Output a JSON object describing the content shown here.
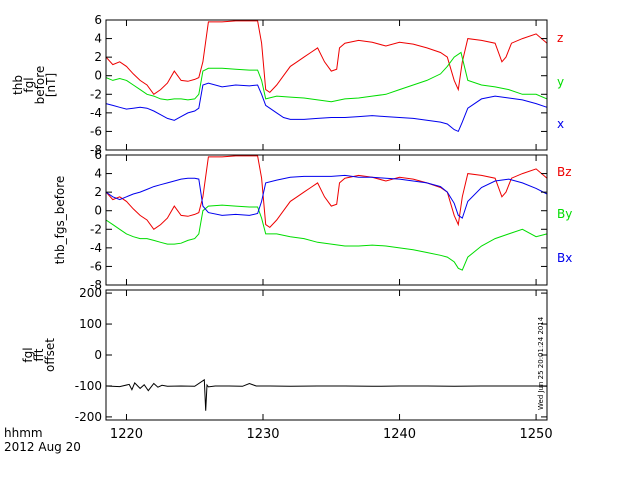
{
  "chart_data": [
    {
      "type": "line",
      "ylabel": [
        "thb",
        "fgl",
        "before",
        "[nT]"
      ],
      "ylim": [
        -8,
        6
      ],
      "yticks": [
        -8,
        -6,
        -4,
        -2,
        0,
        2,
        4,
        6
      ],
      "xlim": [
        1218.5,
        1250.8
      ],
      "series": [
        {
          "name": "z",
          "color": "#ee0000",
          "x": [
            1218.5,
            1219,
            1219.5,
            1220,
            1220.5,
            1221,
            1221.5,
            1222,
            1222.5,
            1223,
            1223.5,
            1224,
            1224.5,
            1225,
            1225.3,
            1225.6,
            1226,
            1227,
            1228,
            1229,
            1229.6,
            1229.9,
            1230.2,
            1230.5,
            1231,
            1231.5,
            1232,
            1232.5,
            1233,
            1233.5,
            1234,
            1234.5,
            1235,
            1235.4,
            1235.6,
            1236,
            1237,
            1238,
            1239,
            1240,
            1241,
            1242,
            1243,
            1243.5,
            1244,
            1244.3,
            1244.6,
            1245,
            1246,
            1247,
            1247.5,
            1247.8,
            1248.2,
            1249,
            1250,
            1250.8
          ],
          "y": [
            2,
            1.2,
            1.5,
            1,
            0.2,
            -0.5,
            -1,
            -2,
            -1.5,
            -0.8,
            0.5,
            -0.5,
            -0.6,
            -0.4,
            -0.2,
            1.5,
            5.8,
            5.8,
            5.9,
            5.9,
            5.9,
            3.5,
            -1.5,
            -1.8,
            -1,
            0,
            1,
            1.5,
            2,
            2.5,
            3,
            1.5,
            0.5,
            0.7,
            3,
            3.5,
            3.8,
            3.6,
            3.2,
            3.6,
            3.4,
            3,
            2.5,
            2,
            -0.5,
            -1.5,
            1.5,
            4,
            3.8,
            3.5,
            1.5,
            2,
            3.5,
            4,
            4.5,
            3.5
          ]
        },
        {
          "name": "y",
          "color": "#00dd00",
          "x": [
            1218.5,
            1219,
            1219.5,
            1220,
            1220.5,
            1221,
            1221.5,
            1222,
            1222.5,
            1223,
            1223.5,
            1224,
            1224.5,
            1225,
            1225.3,
            1225.6,
            1226,
            1227,
            1228,
            1229,
            1229.6,
            1229.9,
            1230.2,
            1231,
            1232,
            1233,
            1234,
            1235,
            1236,
            1237,
            1238,
            1239,
            1240,
            1241,
            1242,
            1243,
            1243.5,
            1244,
            1244.5,
            1245,
            1246,
            1247,
            1248,
            1249,
            1250,
            1250.8
          ],
          "y": [
            -0.2,
            -0.5,
            -0.3,
            -0.5,
            -1,
            -1.5,
            -2,
            -2.2,
            -2.5,
            -2.6,
            -2.5,
            -2.5,
            -2.6,
            -2.5,
            -2,
            0.5,
            0.8,
            0.8,
            0.7,
            0.6,
            0.6,
            -0.5,
            -2.5,
            -2.2,
            -2.3,
            -2.4,
            -2.6,
            -2.8,
            -2.5,
            -2.4,
            -2.2,
            -2,
            -1.5,
            -1,
            -0.5,
            0.2,
            1,
            2,
            2.5,
            -0.5,
            -1,
            -1.2,
            -1.5,
            -2,
            -2,
            -2.5
          ]
        },
        {
          "name": "x",
          "color": "#0000ee",
          "x": [
            1218.5,
            1219,
            1219.5,
            1220,
            1220.5,
            1221,
            1221.5,
            1222,
            1222.5,
            1223,
            1223.5,
            1224,
            1224.5,
            1225,
            1225.3,
            1225.6,
            1226,
            1227,
            1228,
            1229,
            1229.6,
            1229.9,
            1230.2,
            1230.5,
            1231,
            1231.5,
            1232,
            1233,
            1234,
            1235,
            1236,
            1237,
            1238,
            1239,
            1240,
            1241,
            1242,
            1243,
            1243.5,
            1244,
            1244.3,
            1244.6,
            1245,
            1246,
            1247,
            1248,
            1249,
            1250,
            1250.8
          ],
          "y": [
            -3,
            -3.2,
            -3.4,
            -3.6,
            -3.5,
            -3.4,
            -3.5,
            -3.8,
            -4.2,
            -4.6,
            -4.8,
            -4.4,
            -4,
            -3.8,
            -3.5,
            -1,
            -0.8,
            -1.2,
            -1,
            -1.1,
            -1,
            -2,
            -3.2,
            -3.5,
            -4,
            -4.5,
            -4.7,
            -4.7,
            -4.6,
            -4.5,
            -4.5,
            -4.4,
            -4.3,
            -4.4,
            -4.5,
            -4.6,
            -4.8,
            -5,
            -5.2,
            -5.8,
            -6,
            -5,
            -3.5,
            -2.5,
            -2.2,
            -2.4,
            -2.6,
            -3,
            -3.4
          ]
        }
      ],
      "legend": [
        {
          "label": "z",
          "color": "#ee0000"
        },
        {
          "label": "y",
          "color": "#00dd00"
        },
        {
          "label": "x",
          "color": "#0000ee"
        }
      ]
    },
    {
      "type": "line",
      "ylabel": [
        "thb_fgs_before"
      ],
      "ylim": [
        -8,
        6
      ],
      "yticks": [
        -8,
        -6,
        -4,
        -2,
        0,
        2,
        4,
        6
      ],
      "xlim": [
        1218.5,
        1250.8
      ],
      "series": [
        {
          "name": "Bz",
          "color": "#ee0000",
          "x": [
            1218.5,
            1219,
            1219.5,
            1220,
            1220.5,
            1221,
            1221.5,
            1222,
            1222.5,
            1223,
            1223.5,
            1224,
            1224.5,
            1225,
            1225.3,
            1225.6,
            1226,
            1227,
            1228,
            1229,
            1229.6,
            1229.9,
            1230.2,
            1230.5,
            1231,
            1231.5,
            1232,
            1232.5,
            1233,
            1233.5,
            1234,
            1234.5,
            1235,
            1235.4,
            1235.6,
            1236,
            1237,
            1238,
            1239,
            1240,
            1241,
            1242,
            1243,
            1243.5,
            1244,
            1244.3,
            1244.6,
            1245,
            1246,
            1247,
            1247.5,
            1247.8,
            1248.2,
            1249,
            1250,
            1250.8
          ],
          "y": [
            2,
            1.2,
            1.5,
            1,
            0.2,
            -0.5,
            -1,
            -2,
            -1.5,
            -0.8,
            0.5,
            -0.5,
            -0.6,
            -0.4,
            -0.2,
            1.5,
            5.8,
            5.8,
            5.9,
            5.9,
            5.9,
            3.5,
            -1.5,
            -1.8,
            -1,
            0,
            1,
            1.5,
            2,
            2.5,
            3,
            1.5,
            0.5,
            0.7,
            3,
            3.5,
            3.8,
            3.6,
            3.2,
            3.6,
            3.4,
            3,
            2.5,
            2,
            -0.5,
            -1.5,
            1.5,
            4,
            3.8,
            3.5,
            1.5,
            2,
            3.5,
            4,
            4.5,
            3.5
          ]
        },
        {
          "name": "By",
          "color": "#00dd00",
          "x": [
            1218.5,
            1219,
            1219.5,
            1220,
            1220.5,
            1221,
            1221.5,
            1222,
            1222.5,
            1223,
            1223.5,
            1224,
            1224.5,
            1225,
            1225.3,
            1225.6,
            1226,
            1227,
            1228,
            1229,
            1229.6,
            1229.9,
            1230.2,
            1231,
            1232,
            1233,
            1234,
            1235,
            1236,
            1237,
            1238,
            1239,
            1240,
            1241,
            1242,
            1243,
            1243.5,
            1244,
            1244.3,
            1244.6,
            1245,
            1246,
            1247,
            1248,
            1249,
            1250,
            1250.8
          ],
          "y": [
            -1,
            -1.5,
            -2,
            -2.5,
            -2.8,
            -3,
            -3,
            -3.2,
            -3.4,
            -3.6,
            -3.6,
            -3.5,
            -3.2,
            -3,
            -2.5,
            0,
            0.5,
            0.6,
            0.5,
            0.4,
            0.4,
            -0.8,
            -2.5,
            -2.5,
            -2.8,
            -3,
            -3.4,
            -3.6,
            -3.8,
            -3.8,
            -3.7,
            -3.8,
            -4,
            -4.2,
            -4.5,
            -4.8,
            -5,
            -5.5,
            -6.2,
            -6.4,
            -5,
            -3.8,
            -3,
            -2.5,
            -2,
            -2.8,
            -2.5
          ]
        },
        {
          "name": "Bx",
          "color": "#0000ee",
          "x": [
            1218.5,
            1219,
            1219.5,
            1220,
            1220.5,
            1221,
            1221.5,
            1222,
            1222.5,
            1223,
            1223.5,
            1224,
            1224.5,
            1225,
            1225.3,
            1225.6,
            1226,
            1227,
            1228,
            1229,
            1229.6,
            1229.9,
            1230.2,
            1231,
            1232,
            1233,
            1234,
            1235,
            1236,
            1237,
            1238,
            1239,
            1240,
            1241,
            1242,
            1243,
            1243.5,
            1244,
            1244.3,
            1244.6,
            1245,
            1246,
            1247,
            1248,
            1249,
            1250,
            1250.8
          ],
          "y": [
            2,
            1.5,
            1.2,
            1.5,
            1.8,
            2,
            2.3,
            2.6,
            2.8,
            3,
            3.2,
            3.4,
            3.5,
            3.5,
            3.4,
            0.5,
            -0.2,
            -0.5,
            -0.4,
            -0.5,
            -0.3,
            1,
            3,
            3.3,
            3.6,
            3.7,
            3.7,
            3.7,
            3.8,
            3.6,
            3.6,
            3.5,
            3.4,
            3.2,
            3,
            2.6,
            2,
            0.8,
            -0.5,
            -0.8,
            1,
            2.5,
            3.2,
            3.4,
            3,
            2.4,
            1.8
          ]
        }
      ],
      "legend": [
        {
          "label": "Bz",
          "color": "#ee0000"
        },
        {
          "label": "By",
          "color": "#00dd00"
        },
        {
          "label": "Bx",
          "color": "#0000ee"
        }
      ]
    },
    {
      "type": "line",
      "ylabel": [
        "fgl",
        "fft",
        "offset"
      ],
      "ylim": [
        -210,
        210
      ],
      "yticks": [
        -200,
        -100,
        0,
        100,
        200
      ],
      "xlim": [
        1218.5,
        1250.8
      ],
      "series": [
        {
          "name": "",
          "color": "#000000",
          "x": [
            1218.5,
            1219.5,
            1220.2,
            1220.4,
            1220.6,
            1221,
            1221.3,
            1221.6,
            1222,
            1222.3,
            1222.6,
            1223,
            1224,
            1225,
            1225.7,
            1225.8,
            1225.9,
            1226,
            1226.5,
            1227.5,
            1228.5,
            1229,
            1229.5,
            1230.5,
            1232,
            1234,
            1236,
            1238,
            1240,
            1242,
            1244,
            1246,
            1248,
            1250,
            1250.8
          ],
          "y": [
            -100,
            -102,
            -95,
            -112,
            -90,
            -108,
            -96,
            -115,
            -92,
            -104,
            -98,
            -101,
            -100,
            -101,
            -80,
            -180,
            -97,
            -103,
            -100,
            -100,
            -101,
            -92,
            -100,
            -100,
            -101,
            -100,
            -100,
            -101,
            -100,
            -100,
            -101,
            -100,
            -100,
            -100,
            -101
          ]
        }
      ]
    }
  ],
  "x_axis": {
    "ticks": [
      1220,
      1230,
      1240,
      1250
    ],
    "tick_labels": [
      "1220",
      "1230",
      "1240",
      "1250"
    ],
    "label_line1": "hhmm",
    "label_line2": "2012 Aug 20"
  },
  "timestamp": "Wed Jun 25 20:01:24 2014"
}
